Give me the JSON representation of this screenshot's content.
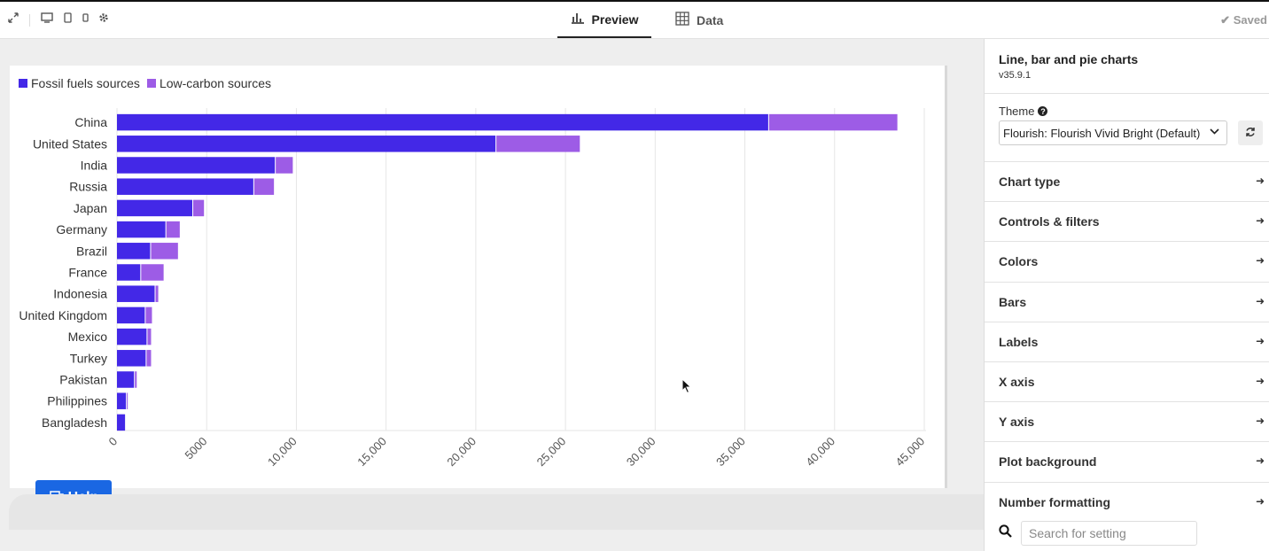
{
  "toolbar": {
    "icons": [
      "expand-icon",
      "desktop-icon",
      "tablet-icon",
      "mobile-icon",
      "gear-icon"
    ],
    "tabs": [
      {
        "label": "Preview",
        "icon": "bar-chart-icon",
        "active": true
      },
      {
        "label": "Data",
        "icon": "table-icon",
        "active": false
      }
    ],
    "status": "Saved"
  },
  "chart": {
    "legend": [
      {
        "label": "Fossil fuels sources",
        "color": "#4328e7"
      },
      {
        "label": "Low-carbon sources",
        "color": "#9d5ce6"
      }
    ]
  },
  "chart_data": {
    "type": "bar",
    "orientation": "horizontal",
    "stacked": true,
    "categories": [
      "China",
      "United States",
      "India",
      "Russia",
      "Japan",
      "Germany",
      "Brazil",
      "France",
      "Indonesia",
      "United Kingdom",
      "Mexico",
      "Turkey",
      "Pakistan",
      "Philippines",
      "Bangladesh"
    ],
    "series": [
      {
        "name": "Fossil fuels sources",
        "color": "#4328e7",
        "values": [
          36300,
          21100,
          8800,
          7600,
          4200,
          2700,
          1850,
          1300,
          2100,
          1550,
          1650,
          1600,
          950,
          500,
          450
        ]
      },
      {
        "name": "Low-carbon sources",
        "color": "#9d5ce6",
        "values": [
          7200,
          4700,
          1000,
          1150,
          650,
          800,
          1550,
          1300,
          200,
          400,
          250,
          300,
          150,
          100,
          0
        ]
      }
    ],
    "xlim": [
      0,
      45000
    ],
    "xticks": [
      "0",
      "5000",
      "10,000",
      "15,000",
      "20,000",
      "25,000",
      "30,000",
      "35,000",
      "40,000",
      "45,000"
    ],
    "grid": "vertical",
    "legend_position": "top-left"
  },
  "help": {
    "label": "Help"
  },
  "panel": {
    "title": "Line, bar and pie charts",
    "version": "v35.9.1",
    "theme_label": "Theme",
    "theme_value": "Flourish: Flourish Vivid Bright (Default)",
    "sections": [
      "Chart type",
      "Controls & filters",
      "Colors",
      "Bars",
      "Labels",
      "X axis",
      "Y axis",
      "Plot background",
      "Number formatting"
    ],
    "search_placeholder": "Search for setting"
  }
}
